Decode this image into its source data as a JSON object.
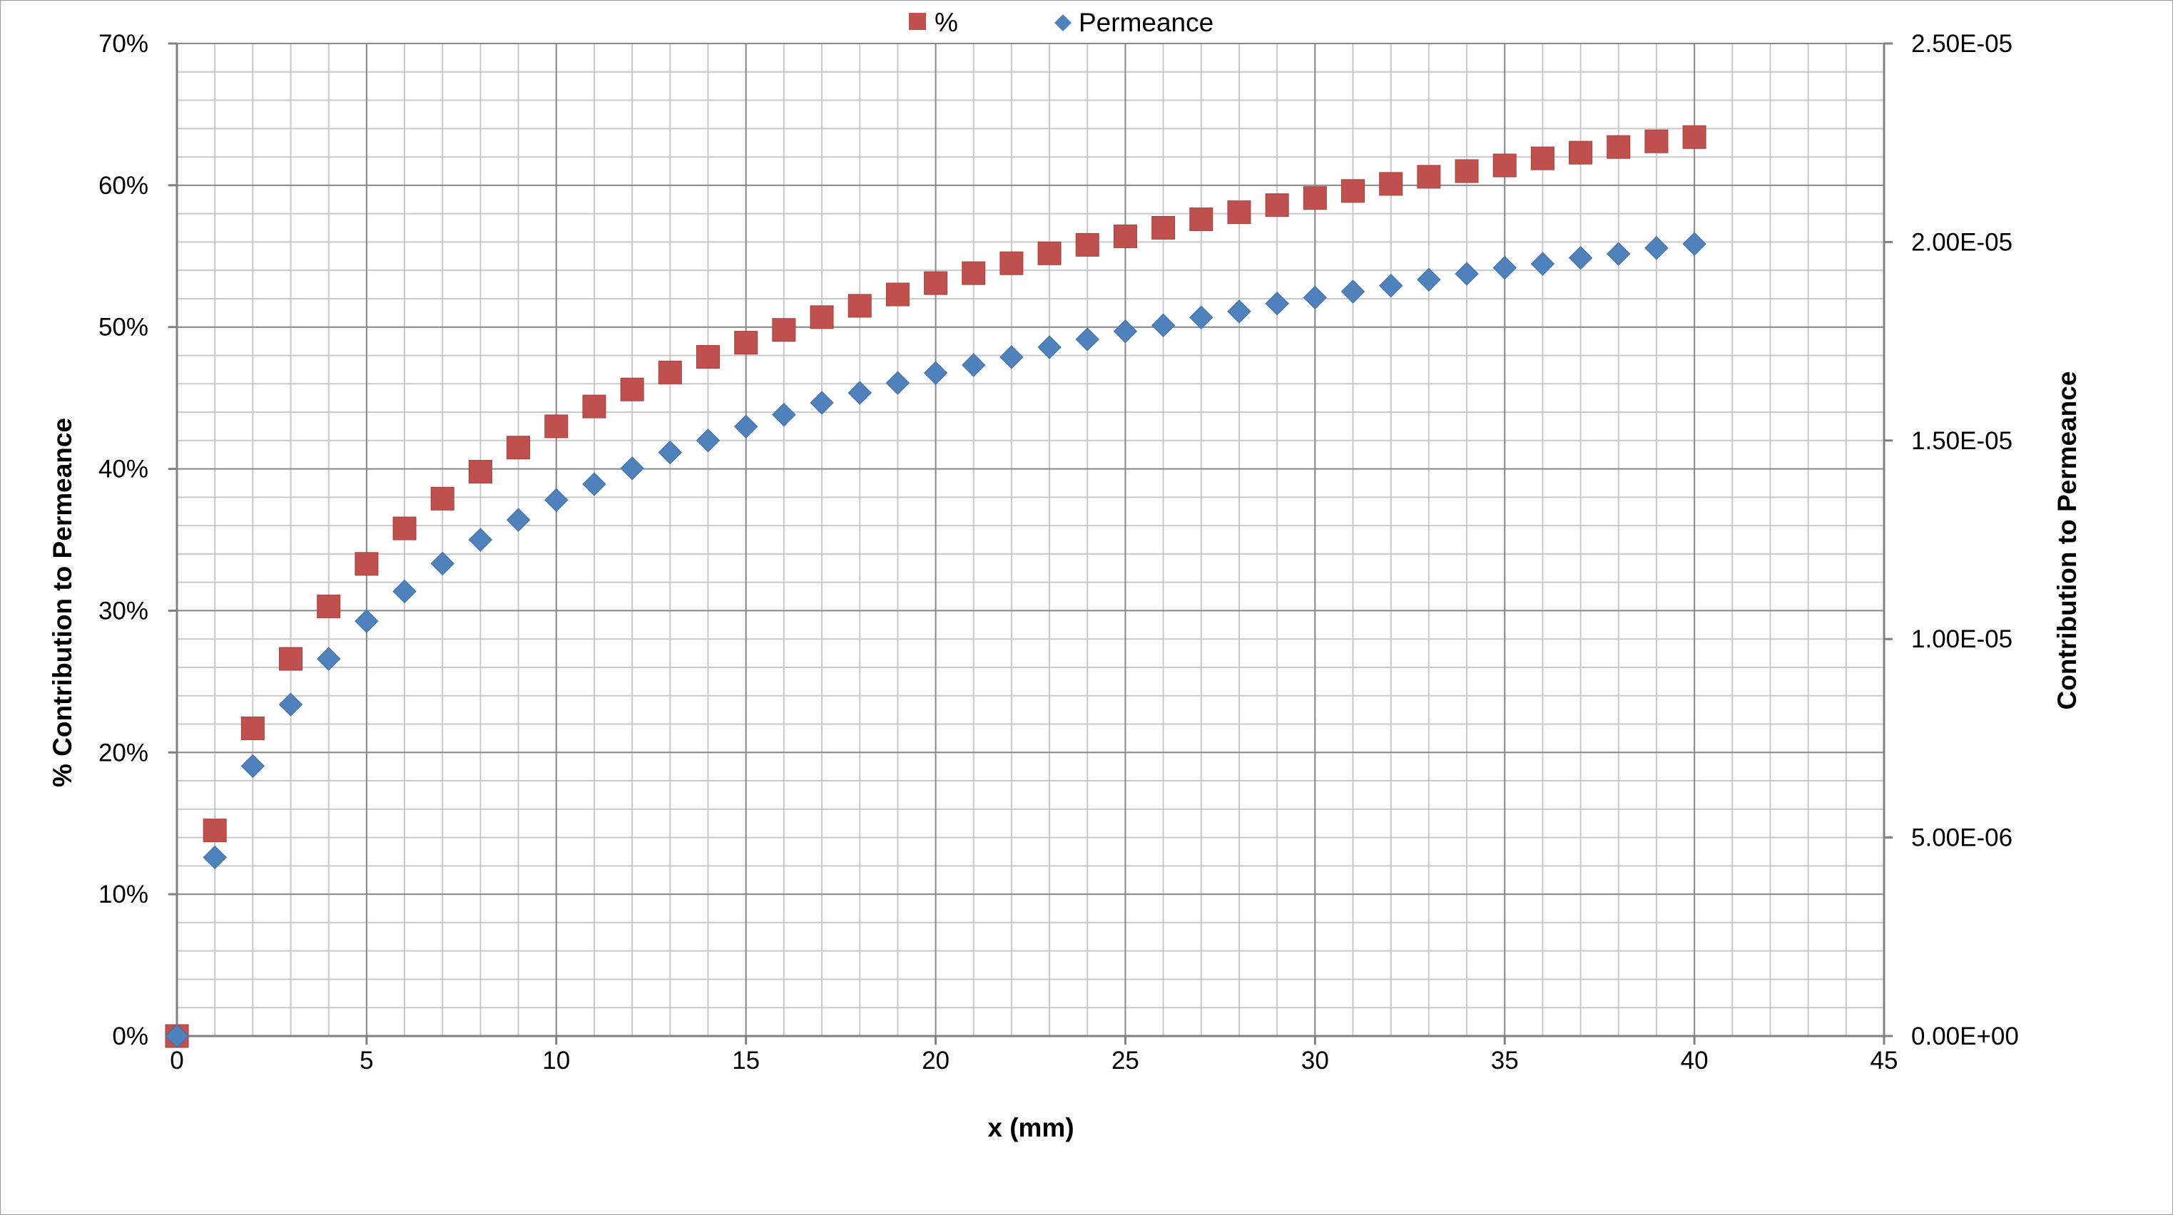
{
  "chart_data": {
    "type": "scatter",
    "title": "",
    "xlabel": "x (mm)",
    "ylabel_left": "% Contribution to Permeance",
    "ylabel_right": "Contribution to Permeance",
    "xlim": [
      0,
      45
    ],
    "x_major_step": 5,
    "x_minor_step": 1,
    "x_ticks": [
      "0",
      "5",
      "10",
      "15",
      "20",
      "25",
      "30",
      "35",
      "40",
      "45"
    ],
    "ylim_left": [
      0,
      0.7
    ],
    "y_left_major_step": 0.1,
    "y_left_minor_step": 0.02,
    "y_left_ticks": [
      "0%",
      "10%",
      "20%",
      "30%",
      "40%",
      "50%",
      "60%",
      "70%"
    ],
    "ylim_right": [
      0,
      2.5e-05
    ],
    "y_right_ticks": [
      "0.00E+00",
      "5.00E-06",
      "1.00E-05",
      "1.50E-05",
      "2.00E-05",
      "2.50E-05"
    ],
    "grid": true,
    "legend_position": "top-center",
    "series": [
      {
        "name": "%",
        "axis": "left",
        "marker": "square",
        "color": "#c0504d",
        "x": [
          0,
          1,
          2,
          3,
          4,
          5,
          6,
          7,
          8,
          9,
          10,
          11,
          12,
          13,
          14,
          15,
          16,
          17,
          18,
          19,
          20,
          21,
          22,
          23,
          24,
          25,
          26,
          27,
          28,
          29,
          30,
          31,
          32,
          33,
          34,
          35,
          36,
          37,
          38,
          39,
          40
        ],
        "values": [
          0,
          0.145,
          0.217,
          0.266,
          0.303,
          0.333,
          0.358,
          0.379,
          0.398,
          0.415,
          0.43,
          0.444,
          0.456,
          0.468,
          0.479,
          0.489,
          0.498,
          0.507,
          0.515,
          0.523,
          0.531,
          0.538,
          0.545,
          0.552,
          0.558,
          0.564,
          0.57,
          0.576,
          0.581,
          0.586,
          0.591,
          0.596,
          0.601,
          0.606,
          0.61,
          0.614,
          0.619,
          0.623,
          0.627,
          0.631,
          0.634
        ]
      },
      {
        "name": "Permeance",
        "axis": "right",
        "marker": "diamond",
        "color": "#4f81bd",
        "x": [
          0,
          1,
          2,
          3,
          4,
          5,
          6,
          7,
          8,
          9,
          10,
          11,
          12,
          13,
          14,
          15,
          16,
          17,
          18,
          19,
          20,
          21,
          22,
          23,
          24,
          25,
          26,
          27,
          28,
          29,
          30,
          31,
          32,
          33,
          34,
          35,
          36,
          37,
          38,
          39,
          40
        ],
        "values": [
          0,
          4.5e-06,
          6.8e-06,
          8.35e-06,
          9.5e-06,
          1.045e-05,
          1.12e-05,
          1.19e-05,
          1.25e-05,
          1.3e-05,
          1.35e-05,
          1.39e-05,
          1.43e-05,
          1.47e-05,
          1.5e-05,
          1.535e-05,
          1.565e-05,
          1.595e-05,
          1.62e-05,
          1.645e-05,
          1.67e-05,
          1.69e-05,
          1.71e-05,
          1.735e-05,
          1.755e-05,
          1.775e-05,
          1.79e-05,
          1.81e-05,
          1.825e-05,
          1.845e-05,
          1.86e-05,
          1.875e-05,
          1.89e-05,
          1.905e-05,
          1.92e-05,
          1.935e-05,
          1.945e-05,
          1.96e-05,
          1.97e-05,
          1.985e-05,
          1.995e-05
        ]
      }
    ]
  }
}
